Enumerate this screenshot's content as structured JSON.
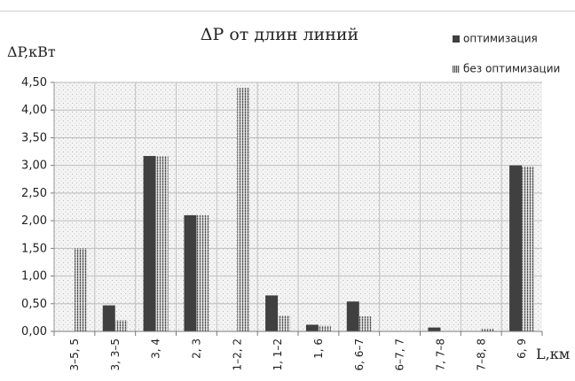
{
  "chart_data": {
    "type": "bar",
    "title": "ΔP от длин линий",
    "ylabel": "ΔP,кВт",
    "xlabel": "L,км",
    "ylim": [
      0,
      4.5
    ],
    "yticks": [
      "0,00",
      "0,50",
      "1,00",
      "1,50",
      "2,00",
      "2,50",
      "3,00",
      "3,50",
      "4,00",
      "4,50"
    ],
    "grid": true,
    "legend_placement": "top-right",
    "categories": [
      "3–5, 5",
      "3, 3–5",
      "3, 4",
      "2, 3",
      "1–2, 2",
      "1, 1–2",
      "1, 6",
      "6, 6–7",
      "6–7, 7",
      "7, 7–8",
      "7–8, 8",
      "6, 9"
    ],
    "series": [
      {
        "name": "оптимизация",
        "color": "#404040",
        "pattern": "solid",
        "values": [
          0,
          0.47,
          3.17,
          2.1,
          0,
          0.65,
          0.12,
          0.54,
          0,
          0.07,
          0,
          3.0
        ]
      },
      {
        "name": "без оптимизации",
        "color": "#9a9a9a",
        "pattern": "striped",
        "values": [
          1.5,
          0.2,
          3.17,
          2.1,
          4.4,
          0.28,
          0.1,
          0.27,
          0,
          0,
          0.05,
          2.98
        ]
      }
    ]
  }
}
